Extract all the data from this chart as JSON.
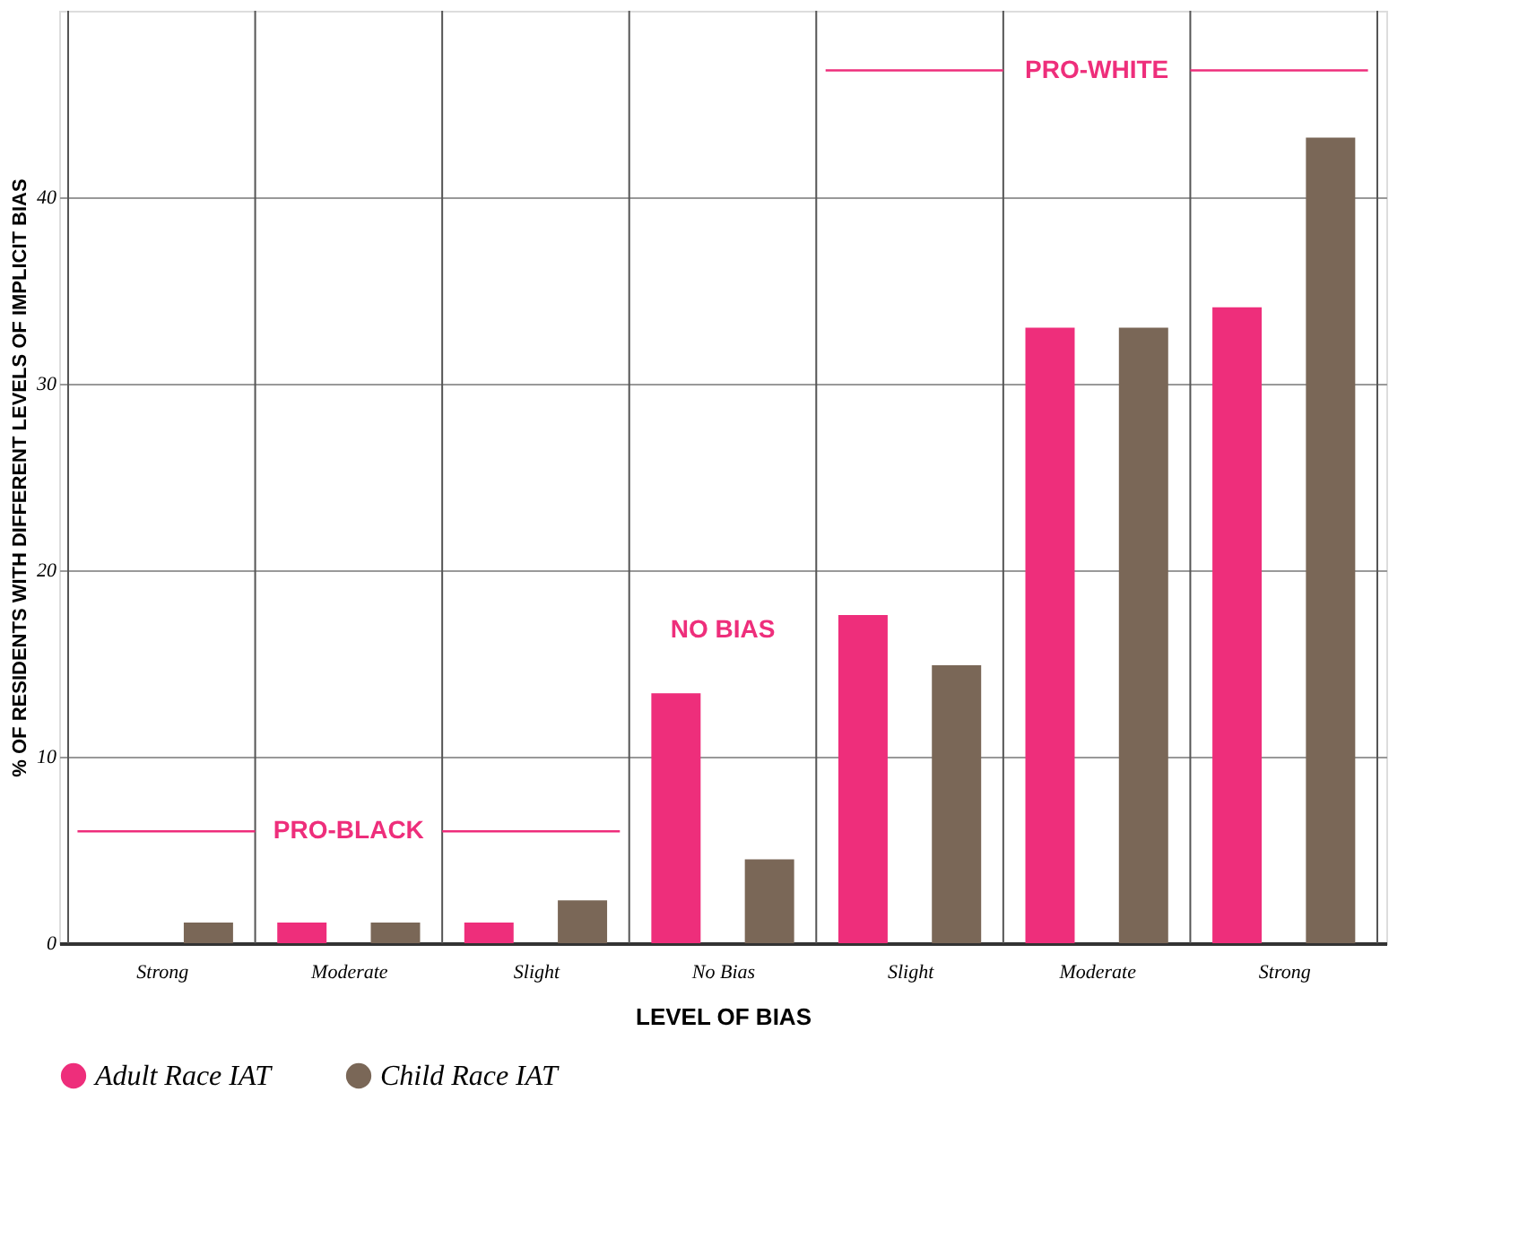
{
  "chart_data": {
    "type": "bar",
    "xlabel": "LEVEL OF BIAS",
    "ylabel": "% OF RESIDENTS WITH DIFFERENT LEVELS OF IMPLICIT BIAS",
    "categories": [
      "Strong",
      "Moderate",
      "Slight",
      "No Bias",
      "Slight",
      "Moderate",
      "Strong"
    ],
    "series": [
      {
        "name": "Adult Race IAT",
        "color": "#ee2e7b",
        "values": [
          0,
          1.1,
          1.1,
          13.4,
          17.6,
          33,
          34.1
        ]
      },
      {
        "name": "Child Race IAT",
        "color": "#7a6757",
        "values": [
          1.1,
          1.1,
          2.3,
          4.5,
          14.9,
          33,
          43.2
        ]
      }
    ],
    "ylim": [
      0,
      50
    ],
    "yticks": [
      0,
      10,
      20,
      30,
      40
    ],
    "grid": true,
    "legend": "bottom left",
    "annotations": [
      "PRO-BLACK",
      "NO BIAS",
      "PRO-WHITE"
    ]
  }
}
